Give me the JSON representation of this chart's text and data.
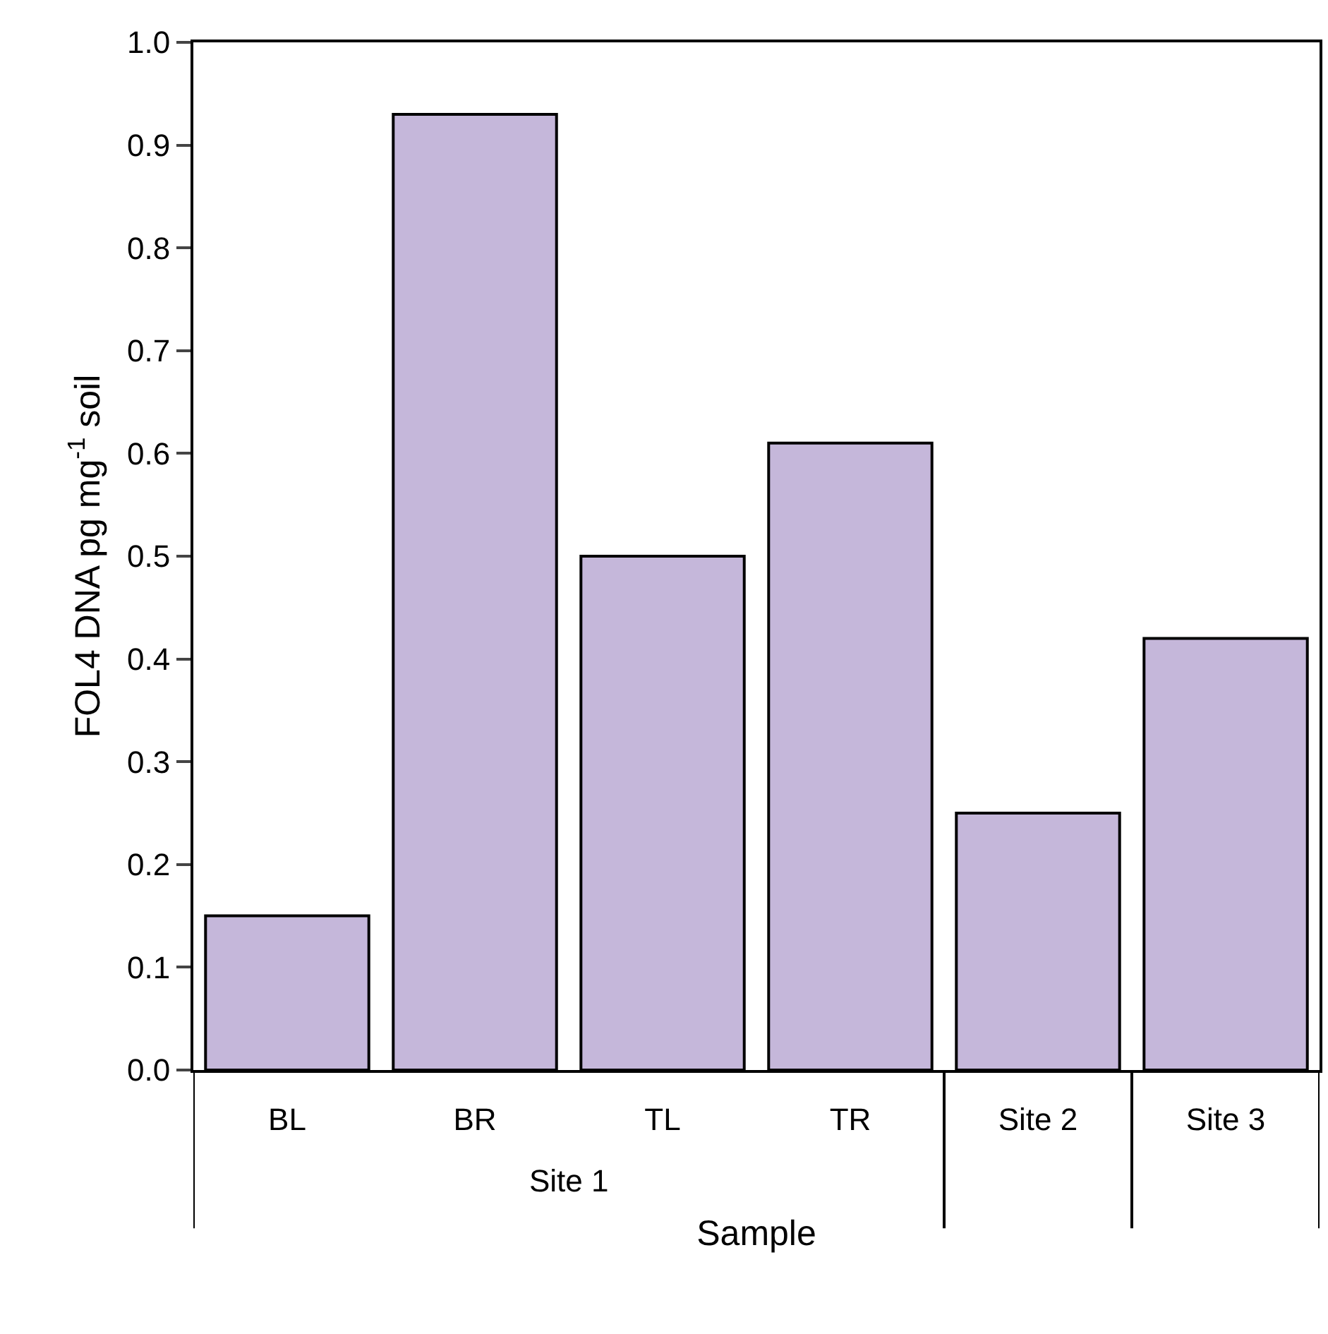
{
  "chart_data": {
    "type": "bar",
    "xlabel": "Sample",
    "ylabel": "FOL4 DNA pg mg$^{-1}$ soil",
    "categories": [
      "BL",
      "BR",
      "TL",
      "TR",
      "Site 2",
      "Site 3"
    ],
    "values": [
      0.15,
      0.93,
      0.5,
      0.61,
      0.25,
      0.42
    ],
    "color": "#c5b7da",
    "ylim": [
      0,
      1
    ],
    "yticks": [
      {
        "value": 0,
        "label": "0.0"
      },
      0.1,
      0.2,
      0.3,
      0.4,
      0.5,
      0.6,
      0.7,
      0.8,
      0.9,
      {
        "value": 1,
        "label": "1.0"
      }
    ],
    "annotations": [
      "Site 1"
    ],
    "grid": false
  }
}
